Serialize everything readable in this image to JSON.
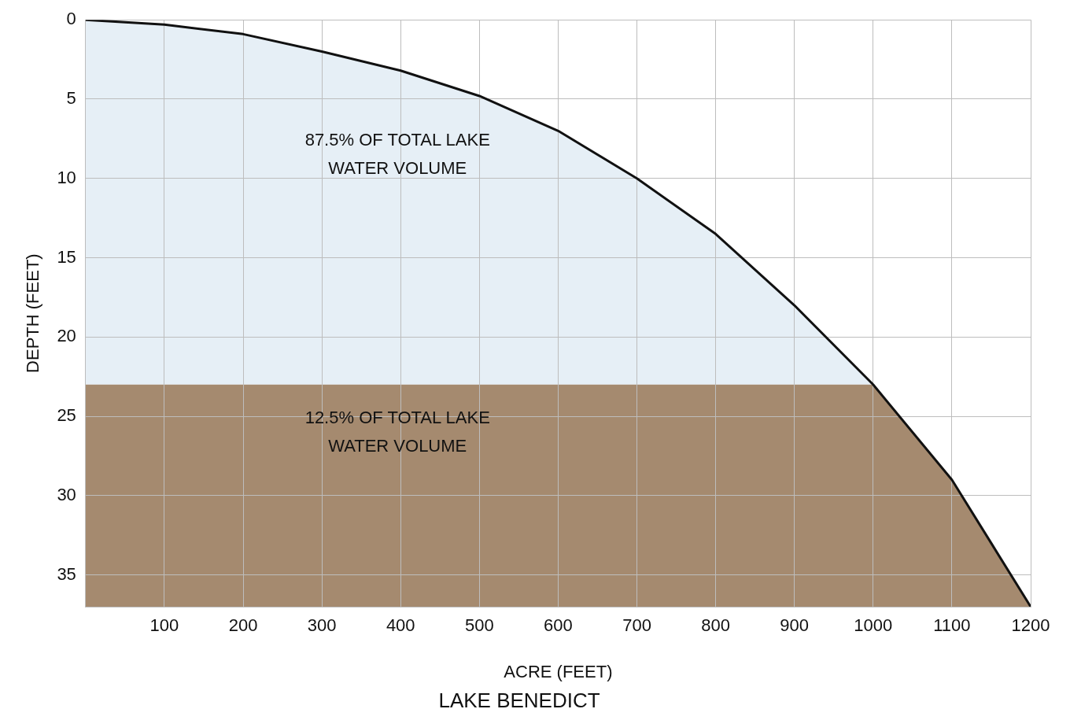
{
  "chart_data": {
    "type": "line",
    "title": "LAKE BENEDICT",
    "xlabel": "ACRE (FEET)",
    "ylabel": "DEPTH (FEET)",
    "x": [
      0,
      100,
      200,
      300,
      400,
      500,
      600,
      700,
      800,
      900,
      1000,
      1100,
      1150,
      1200
    ],
    "series": [
      {
        "color": "#111111",
        "values": [
          0,
          0.3,
          0.9,
          2,
          3.2,
          4.8,
          7,
          10,
          13.5,
          18,
          23,
          29,
          33,
          37
        ]
      }
    ],
    "xlim": [
      0,
      1200
    ],
    "xticks": [
      {
        "value": 0,
        "label": null
      },
      100,
      200,
      300,
      400,
      500,
      600,
      700,
      800,
      900,
      1000,
      1100,
      1200
    ],
    "ylim": [
      37,
      0
    ],
    "yticks": [
      0,
      5,
      10,
      15,
      20,
      25,
      30,
      35
    ],
    "bands": [
      {
        "axis": "y",
        "from": 0,
        "to": 23,
        "color": "#e6eff6",
        "label": "87.5% OF TOTAL LAKE WATER VOLUME"
      },
      {
        "axis": "y",
        "from": 23,
        "to": 37,
        "color": "#a58a6f",
        "label": "12.5% OF TOTAL LAKE WATER VOLUME"
      }
    ],
    "grid": true,
    "legend": false
  }
}
